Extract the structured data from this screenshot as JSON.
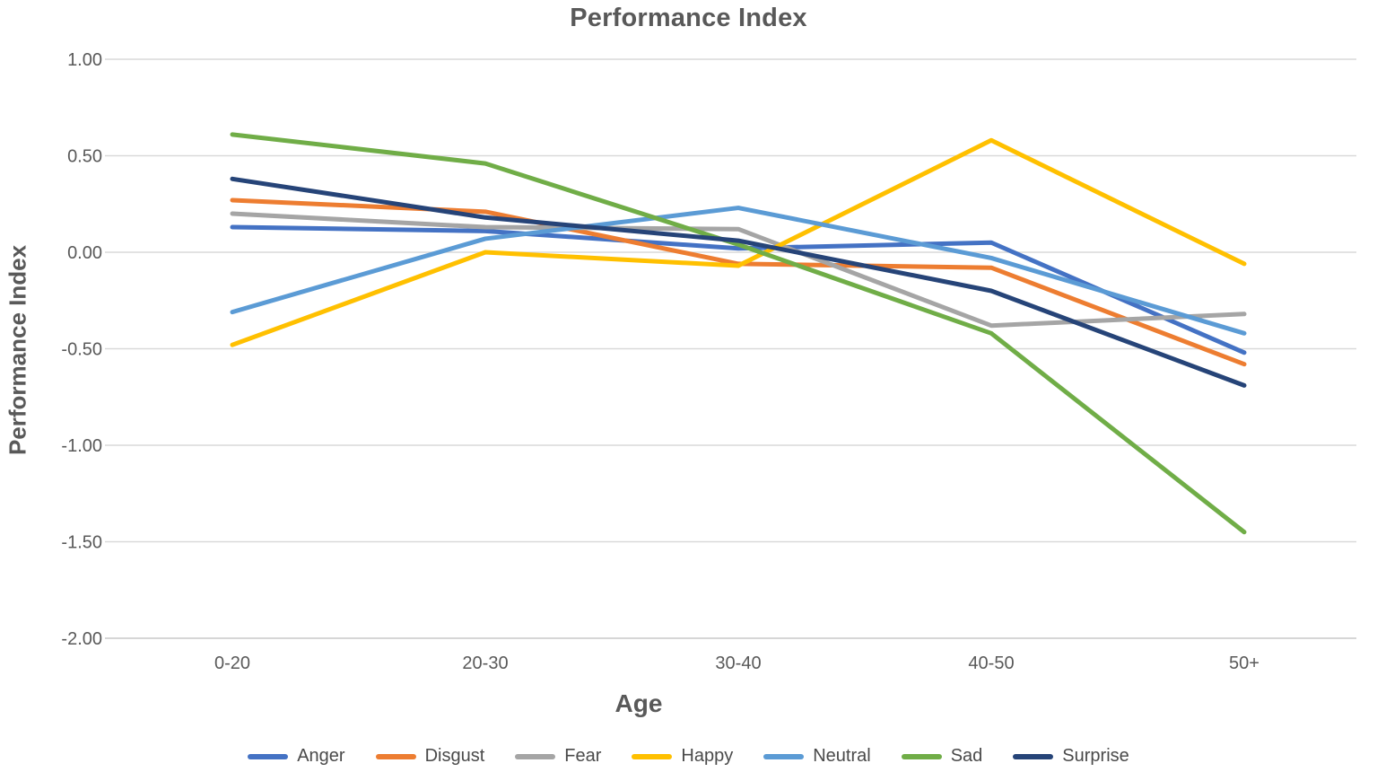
{
  "chart_data": {
    "type": "line",
    "title": "Performance Index",
    "xlabel": "Age",
    "ylabel": "Performance Index",
    "categories": [
      "0-20",
      "20-30",
      "30-40",
      "40-50",
      "50+"
    ],
    "series": [
      {
        "name": "Anger",
        "color": "#4472C4",
        "values": [
          0.13,
          0.11,
          0.02,
          0.05,
          -0.52
        ]
      },
      {
        "name": "Disgust",
        "color": "#ED7D31",
        "values": [
          0.27,
          0.21,
          -0.06,
          -0.08,
          -0.58
        ]
      },
      {
        "name": "Fear",
        "color": "#A5A5A5",
        "values": [
          0.2,
          0.13,
          0.12,
          -0.38,
          -0.32
        ]
      },
      {
        "name": "Happy",
        "color": "#FFC000",
        "values": [
          -0.48,
          0.0,
          -0.07,
          0.58,
          -0.06
        ]
      },
      {
        "name": "Neutral",
        "color": "#5B9BD5",
        "values": [
          -0.31,
          0.07,
          0.23,
          -0.03,
          -0.42
        ]
      },
      {
        "name": "Sad",
        "color": "#70AD47",
        "values": [
          0.61,
          0.46,
          0.04,
          -0.42,
          -1.45
        ]
      },
      {
        "name": "Surprise",
        "color": "#264478",
        "values": [
          0.38,
          0.18,
          0.06,
          -0.2,
          -0.69
        ]
      }
    ],
    "yticks": [
      1.0,
      0.5,
      0.0,
      -0.5,
      -1.0,
      -1.5,
      -2.0
    ],
    "ytick_labels": [
      "1.00",
      "0.50",
      "0.00",
      "-0.50",
      "-1.00",
      "-1.50",
      "-2.00"
    ],
    "ylim": [
      -2.0,
      1.0
    ],
    "grid": true,
    "legend_position": "bottom",
    "gridline_color": "#D9D9D9",
    "axis_line_color": "#C9C9C9",
    "text_color": "#595959"
  }
}
